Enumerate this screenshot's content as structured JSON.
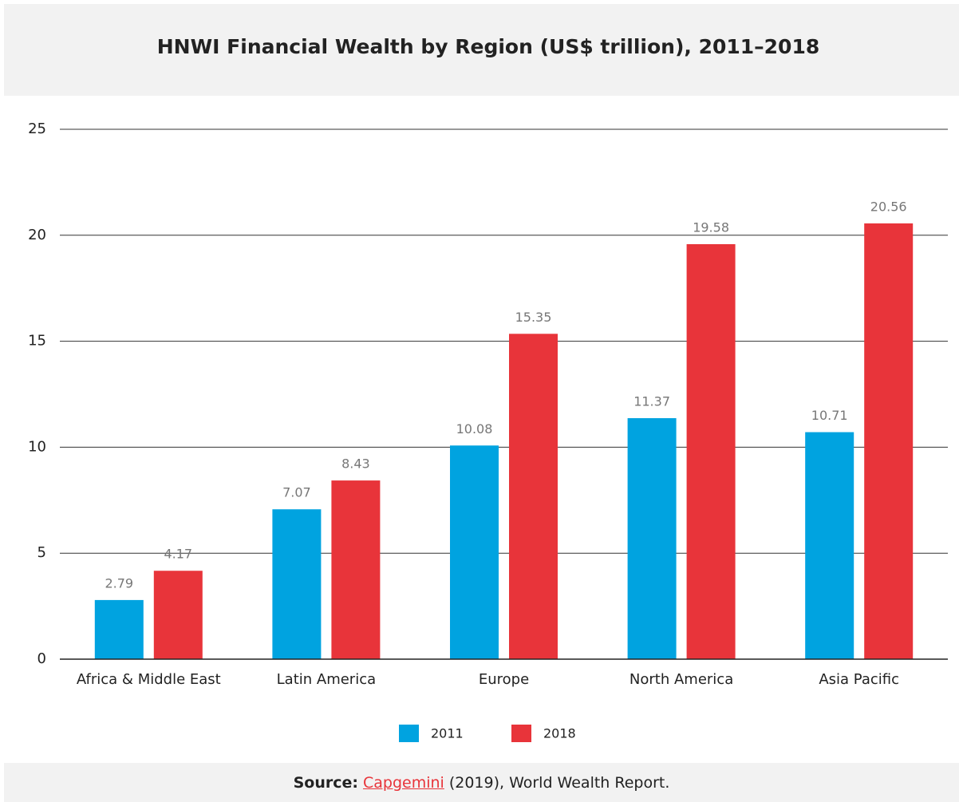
{
  "chart_data": {
    "type": "bar",
    "title": "HNWI Financial Wealth by Region (US$ trillion), 2011–2018",
    "categories": [
      "Africa & Middle East",
      "Latin America",
      "Europe",
      "North America",
      "Asia Pacific"
    ],
    "series": [
      {
        "name": "2011",
        "color": "#00a3e0",
        "values": [
          2.79,
          7.07,
          10.08,
          11.37,
          10.71
        ]
      },
      {
        "name": "2018",
        "color": "#e8343a",
        "values": [
          4.17,
          8.43,
          15.35,
          19.58,
          20.56
        ]
      }
    ],
    "ylim": [
      0,
      25
    ],
    "yticks": [
      0,
      5,
      10,
      15,
      20,
      25
    ],
    "grid": true,
    "legend": "bottom"
  },
  "source": {
    "label": "Source:",
    "link": "Capgemini",
    "text": "(2019), World Wealth Report."
  }
}
